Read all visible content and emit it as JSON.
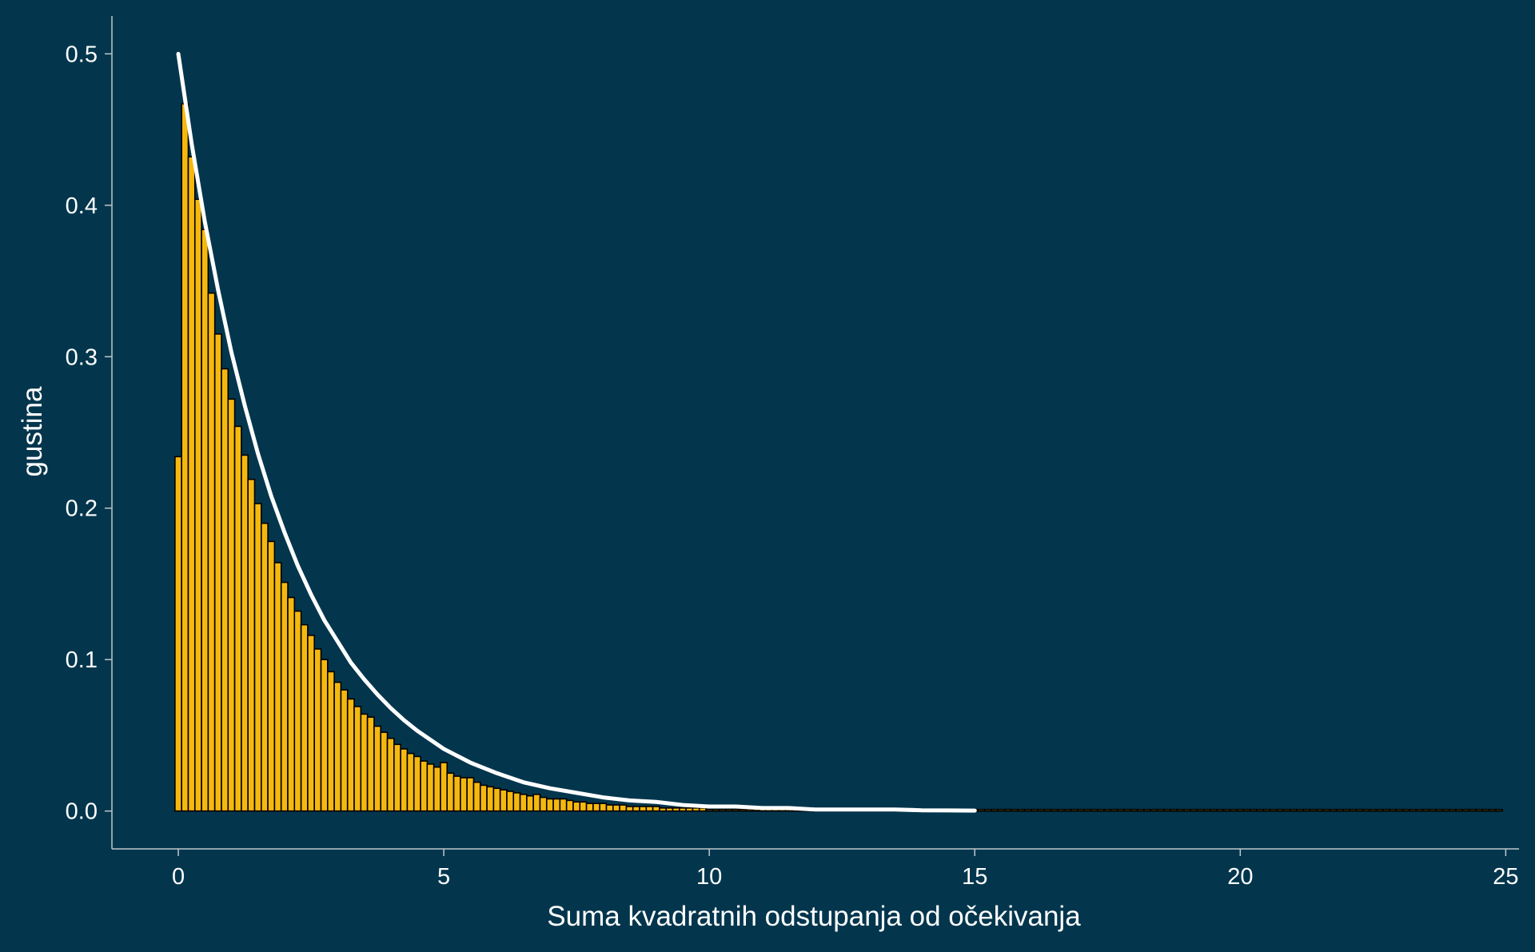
{
  "chart_data": {
    "type": "bar",
    "title": "",
    "xlabel": "Suma kvadratnih odstupanja od očekivanja",
    "ylabel": "gustina",
    "xlim": [
      -1.25,
      25.25
    ],
    "ylim": [
      -0.025,
      0.525
    ],
    "x_ticks": [
      0,
      5,
      10,
      15,
      20,
      25
    ],
    "x_tick_labels": [
      "0",
      "5",
      "10",
      "15",
      "20",
      "25"
    ],
    "y_ticks": [
      0.0,
      0.1,
      0.2,
      0.3,
      0.4,
      0.5
    ],
    "y_tick_labels": [
      "0.0",
      "0.1",
      "0.2",
      "0.3",
      "0.4",
      "0.5"
    ],
    "grid": false,
    "legend": "none",
    "bin_width": 0.125,
    "histogram": {
      "name": "histogram",
      "x_start": -0.0625,
      "densities": [
        0.234,
        0.467,
        0.432,
        0.404,
        0.384,
        0.342,
        0.315,
        0.292,
        0.272,
        0.254,
        0.235,
        0.219,
        0.203,
        0.19,
        0.178,
        0.164,
        0.151,
        0.141,
        0.132,
        0.123,
        0.116,
        0.107,
        0.1,
        0.092,
        0.085,
        0.08,
        0.074,
        0.069,
        0.064,
        0.062,
        0.056,
        0.052,
        0.048,
        0.044,
        0.041,
        0.038,
        0.036,
        0.033,
        0.031,
        0.029,
        0.032,
        0.025,
        0.023,
        0.022,
        0.022,
        0.019,
        0.017,
        0.016,
        0.015,
        0.014,
        0.013,
        0.012,
        0.011,
        0.01,
        0.011,
        0.009,
        0.008,
        0.008,
        0.008,
        0.007,
        0.006,
        0.006,
        0.005,
        0.005,
        0.005,
        0.004,
        0.004,
        0.004,
        0.003,
        0.003,
        0.003,
        0.003,
        0.003,
        0.002,
        0.002,
        0.002,
        0.002,
        0.002,
        0.002,
        0.002,
        0.001,
        0.001,
        0.001,
        0.001,
        0.001,
        0.001,
        0.001,
        0.001,
        0.001,
        0.001,
        0.001,
        0.001,
        0.001,
        0.001,
        0.001,
        0.001,
        0.001,
        0.001,
        0.001,
        0.001,
        0.001,
        0.001,
        0.001,
        0.001,
        0.001,
        0.001,
        0.001,
        0.001,
        0.001,
        0.001,
        0.001,
        0.001,
        0.001,
        0.001,
        0.001,
        0.001,
        0.001,
        0.001,
        0.001,
        0.001,
        0.001,
        0.001,
        0.001,
        0.001,
        0.001,
        0.001,
        0.001,
        0.001,
        0.001,
        0.001,
        0.001,
        0.001,
        0.001,
        0.001,
        0.001,
        0.001,
        0.001,
        0.001,
        0.001,
        0.001,
        0.001,
        0.001,
        0.001,
        0.001,
        0.001,
        0.001,
        0.001,
        0.001,
        0.001,
        0.001,
        0.001,
        0.001,
        0.001,
        0.001,
        0.001,
        0.001,
        0.001,
        0.001,
        0.001,
        0.001,
        0.001,
        0.001,
        0.001,
        0.001,
        0.001,
        0.001,
        0.001,
        0.001,
        0.001,
        0.001,
        0.001,
        0.001,
        0.001,
        0.001,
        0.001,
        0.001,
        0.001,
        0.001,
        0.001,
        0.001,
        0.001,
        0.001,
        0.001,
        0.001,
        0.001,
        0.001,
        0.001,
        0.001,
        0.001,
        0.001,
        0.001,
        0.001,
        0.001,
        0.001,
        0.001,
        0.001,
        0.001,
        0.001,
        0.001,
        0.001
      ],
      "fill": "#f5b80f",
      "edge": "#000000"
    },
    "curve": {
      "name": "density",
      "x": [
        0,
        0.25,
        0.5,
        0.75,
        1,
        1.25,
        1.5,
        1.75,
        2,
        2.25,
        2.5,
        2.75,
        3,
        3.25,
        3.5,
        3.75,
        4,
        4.25,
        4.5,
        4.75,
        5,
        5.5,
        6,
        6.5,
        7,
        7.5,
        8,
        8.5,
        9,
        9.5,
        10,
        10.5,
        11,
        11.5,
        12,
        12.5,
        13,
        13.5,
        14,
        14.5,
        15
      ],
      "y": [
        0.5,
        0.441,
        0.389,
        0.344,
        0.303,
        0.268,
        0.236,
        0.208,
        0.184,
        0.162,
        0.143,
        0.126,
        0.112,
        0.098,
        0.087,
        0.077,
        0.068,
        0.06,
        0.053,
        0.047,
        0.041,
        0.032,
        0.025,
        0.019,
        0.015,
        0.012,
        0.009,
        0.007,
        0.006,
        0.004,
        0.003,
        0.003,
        0.002,
        0.002,
        0.001,
        0.001,
        0.001,
        0.001,
        0.0005,
        0.0004,
        0.0003
      ],
      "color": "#ffffff"
    }
  },
  "colors": {
    "background": "#03364d",
    "axis": "#bfc8cc",
    "text": "#ffffff"
  }
}
